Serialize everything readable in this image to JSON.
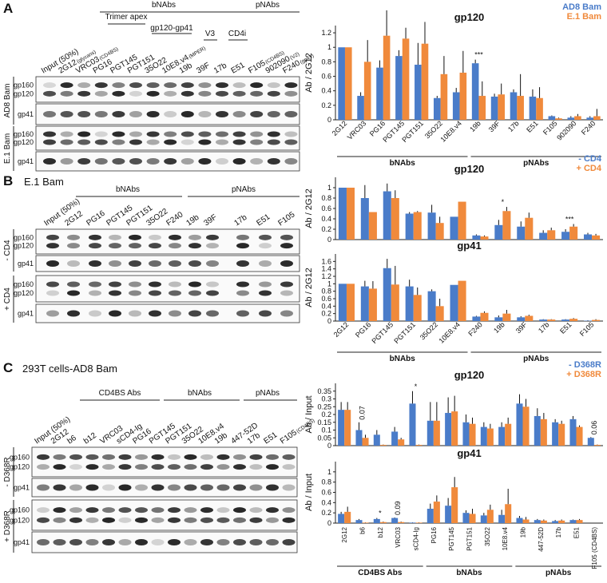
{
  "panels": [
    {
      "letter": "A",
      "lanes": [
        {
          "name": "Input (50%)"
        },
        {
          "name": "2G12",
          "note": "(glycans)"
        },
        {
          "name": "VRC03",
          "note": "(CD4BS)"
        },
        {
          "name": "PG16"
        },
        {
          "name": "PGT145"
        },
        {
          "name": "PGT151"
        },
        {
          "name": "35O22"
        },
        {
          "name": "10E8.v4",
          "note": "(MPER)"
        },
        {
          "name": "19b"
        },
        {
          "name": "39F"
        },
        {
          "name": "17b"
        },
        {
          "name": "E51"
        },
        {
          "name": "F105",
          "note": "(CD4BS)"
        },
        {
          "name": "902090",
          "note": "(V2)"
        },
        {
          "name": "F240",
          "note": "(gp41)"
        }
      ],
      "headers": [
        "bNAbs",
        "pNAbs",
        "Trimer apex",
        "gp120-gp41",
        "V3",
        "CD4i"
      ],
      "blocks": [
        {
          "label": "AD8 Bam",
          "strips": [
            [
              "gp160",
              "gp120"
            ],
            [
              "gp41"
            ]
          ]
        },
        {
          "label": "E.1 Bam",
          "strips": [
            [
              "gp160",
              "gp120"
            ],
            [
              "gp41"
            ]
          ]
        }
      ]
    },
    {
      "letter": "B",
      "title": "E.1 Bam",
      "lanes": [
        {
          "name": "Input (50%)"
        },
        {
          "name": "2G12"
        },
        {
          "name": "PG16"
        },
        {
          "name": "PGT145"
        },
        {
          "name": "PGT151"
        },
        {
          "name": "35O22"
        },
        {
          "name": "F240"
        },
        {
          "name": "19b"
        },
        {
          "name": "39F"
        },
        {
          "name": "17b"
        },
        {
          "name": "E51"
        },
        {
          "name": "F105"
        }
      ],
      "headers": [
        "bNAbs",
        "pNAbs"
      ],
      "blocks": [
        {
          "label": "- CD4",
          "strips": [
            [
              "gp160",
              "gp120"
            ],
            [
              "gp41"
            ]
          ]
        },
        {
          "label": "+ CD4",
          "strips": [
            [
              "gp160",
              "gp120"
            ],
            [
              "gp41"
            ]
          ]
        }
      ]
    },
    {
      "letter": "C",
      "title": "293T cells-AD8 Bam",
      "lanes": [
        {
          "name": "Input (50%)"
        },
        {
          "name": "2G12"
        },
        {
          "name": "b6"
        },
        {
          "name": "b12"
        },
        {
          "name": "VRC03"
        },
        {
          "name": "sCD4-Ig"
        },
        {
          "name": "PG16"
        },
        {
          "name": "PGT145"
        },
        {
          "name": "PGT151"
        },
        {
          "name": "35O22"
        },
        {
          "name": "10E8.v4"
        },
        {
          "name": "19b"
        },
        {
          "name": "447-52D"
        },
        {
          "name": "17b"
        },
        {
          "name": "E51"
        },
        {
          "name": "F105",
          "note": "(CD4BS)"
        }
      ],
      "headers": [
        "CD4BS Abs",
        "bNAbs",
        "pNAbs"
      ],
      "blocks": [
        {
          "label": "- D368R",
          "strips": [
            [
              "gp160",
              "gp120"
            ],
            [
              "gp41"
            ]
          ]
        },
        {
          "label": "+ D368R",
          "strips": [
            [
              "gp160",
              "gp120"
            ],
            [
              "gp41"
            ]
          ]
        }
      ]
    }
  ],
  "chart_data": [
    {
      "type": "bar",
      "title": "gp120",
      "y_label": "Ab / 2G12",
      "legend": "upper right",
      "categories": [
        "2G12",
        "VRC03",
        "PG16",
        "PGT145",
        "PGT151",
        "35O22",
        "10E8.v4",
        "19b",
        "39F",
        "17b",
        "E51",
        "F105",
        "902090",
        "F240"
      ],
      "series": [
        {
          "name": "AD8 Bam",
          "color": "#4a7cc9",
          "values": [
            1.0,
            0.33,
            0.72,
            0.88,
            0.76,
            0.3,
            0.38,
            0.78,
            0.32,
            0.38,
            0.32,
            0.05,
            0.03,
            0.03
          ],
          "errors": [
            0,
            0.05,
            0.1,
            0.08,
            0.3,
            0.03,
            0.06,
            0.05,
            0.04,
            0.04,
            0.1,
            0.01,
            0.02,
            0.02
          ]
        },
        {
          "name": "E.1 Bam",
          "color": "#f08a3c",
          "values": [
            1.0,
            0.8,
            1.16,
            1.12,
            1.05,
            0.63,
            0.65,
            0.33,
            0.35,
            0.33,
            0.3,
            0.02,
            0.05,
            0.05
          ],
          "errors": [
            0,
            0.3,
            0.35,
            0.15,
            0.3,
            0.25,
            0.3,
            0.2,
            0.15,
            0.3,
            0.15,
            0.01,
            0.03,
            0.1
          ]
        }
      ],
      "annotations": [
        null,
        null,
        null,
        null,
        null,
        null,
        null,
        "***",
        null,
        null,
        null,
        null,
        null,
        null
      ],
      "groups": [
        {
          "label": "bNAbs",
          "from": "2G12",
          "to": "10E8.v4"
        },
        {
          "label": "pNAbs",
          "from": "19b",
          "to": "F240"
        }
      ],
      "ylim": [
        0,
        1.3
      ],
      "yticks": [
        0,
        0.2,
        0.4,
        0.6,
        0.8,
        1,
        1.2
      ]
    },
    {
      "type": "bar",
      "title": "gp120",
      "y_label": "Ab / 2G12",
      "legend": "upper right",
      "series": [
        {
          "name": "- CD4",
          "color": "#4a7cc9",
          "values": [
            1.0,
            0.8,
            0.93,
            0.5,
            0.52,
            0.44,
            0.08,
            0.28,
            0.25,
            0.13,
            0.15,
            0.1
          ],
          "errors": [
            0,
            0.25,
            0.15,
            0.03,
            0.15,
            0,
            0.02,
            0.1,
            0.1,
            0.05,
            0.05,
            0.03
          ]
        },
        {
          "name": "+ CD4",
          "color": "#f08a3c",
          "values": [
            1.0,
            0.53,
            0.8,
            0.53,
            0.32,
            0.73,
            0.06,
            0.55,
            0.42,
            0.18,
            0.25,
            0.08
          ],
          "errors": [
            0,
            0,
            0.15,
            0.02,
            0.12,
            0,
            0.02,
            0.08,
            0.1,
            0.05,
            0.05,
            0.03
          ]
        }
      ],
      "annotations": [
        null,
        null,
        null,
        null,
        null,
        null,
        null,
        "*",
        null,
        null,
        "***",
        null
      ],
      "ylim": [
        0,
        1.2
      ],
      "yticks": [
        0,
        0.2,
        0.4,
        0.6,
        0.8,
        1
      ]
    },
    {
      "type": "bar",
      "title": "gp41",
      "y_label": "Ab / 2G12",
      "categories": [
        "2G12",
        "PG16",
        "PGT145",
        "PGT151",
        "35O22",
        "10E8.v4",
        "F240",
        "19b",
        "39F",
        "17b",
        "E51",
        "F105"
      ],
      "series": [
        {
          "color": "#4a7cc9",
          "values": [
            1.0,
            0.93,
            1.42,
            0.93,
            0.8,
            0.97,
            0.12,
            0.1,
            0.1,
            0.04,
            0.04,
            0.01
          ],
          "errors": [
            0,
            0.15,
            0.25,
            0.18,
            0.05,
            0,
            0.02,
            0.05,
            0.03,
            0.01,
            0.01,
            0.01
          ]
        },
        {
          "color": "#f08a3c",
          "values": [
            1.0,
            0.87,
            0.98,
            0.7,
            0.4,
            1.08,
            0.22,
            0.2,
            0.14,
            0.04,
            0.06,
            0.03
          ],
          "errors": [
            0,
            0.2,
            0.5,
            0.2,
            0.2,
            0,
            0.04,
            0.1,
            0.03,
            0.01,
            0.02,
            0.02
          ]
        }
      ],
      "groups": [
        {
          "label": "bNAbs",
          "from": "2G12",
          "to": "10E8.v4"
        },
        {
          "label": "pNAbs",
          "from": "F240",
          "to": "F105"
        }
      ],
      "ylim": [
        0,
        1.8
      ],
      "yticks": [
        0,
        0.2,
        0.4,
        0.6,
        0.8,
        1,
        1.2,
        1.4,
        1.6
      ]
    },
    {
      "type": "bar",
      "title": "gp120",
      "y_label": "Ab / Input",
      "legend": "upper right",
      "series": [
        {
          "name": "- D368R",
          "color": "#4a7cc9",
          "values": [
            0.23,
            0.1,
            0.07,
            0.09,
            0.27,
            0.16,
            0.21,
            0.15,
            0.12,
            0.12,
            0.27,
            0.19,
            0.15,
            0.17,
            0.05
          ],
          "errors": [
            0.05,
            0.05,
            0.03,
            0.03,
            0.08,
            0.12,
            0.1,
            0.05,
            0.03,
            0.03,
            0.06,
            0.05,
            0.02,
            0.02,
            0.005
          ]
        },
        {
          "name": "+ D368R",
          "color": "#f08a3c",
          "values": [
            0.23,
            0.05,
            0.005,
            0.04,
            0.005,
            0.16,
            0.22,
            0.14,
            0.11,
            0.14,
            0.25,
            0.17,
            0.14,
            0.12,
            0.005
          ],
          "errors": [
            0.05,
            0.02,
            0.002,
            0.01,
            0.002,
            0.12,
            0.1,
            0.04,
            0.03,
            0.04,
            0.05,
            0.04,
            0.02,
            0.01,
            0.002
          ]
        }
      ],
      "annotations": [
        null,
        "0.07",
        null,
        null,
        "*",
        null,
        null,
        null,
        null,
        null,
        null,
        null,
        null,
        null,
        "0.06"
      ],
      "ylim": [
        0,
        0.4
      ],
      "yticks": [
        0,
        0.05,
        0.1,
        0.15,
        0.2,
        0.25,
        0.3,
        0.35
      ]
    },
    {
      "type": "bar",
      "title": "gp41",
      "y_label": "Ab / Input",
      "categories": [
        "2G12",
        "b6",
        "b12",
        "VRC03",
        "sCD4-Ig",
        "PG16",
        "PGT145",
        "PGT151",
        "35O22",
        "10E8.v4",
        "19b",
        "447-52D",
        "17b",
        "E51",
        "F105 (CD4BS)"
      ],
      "series": [
        {
          "color": "#4a7cc9",
          "values": [
            0.18,
            0.06,
            0.08,
            0.1,
            0.01,
            0.28,
            0.34,
            0.2,
            0.15,
            0.16,
            0.1,
            0.06,
            0.04,
            0.06,
            0.0
          ],
          "errors": [
            0.04,
            0.02,
            0.02,
            0.01,
            0.005,
            0.1,
            0.15,
            0.05,
            0.05,
            0.1,
            0.04,
            0.02,
            0.02,
            0.01,
            0.002
          ]
        },
        {
          "color": "#f08a3c",
          "values": [
            0.22,
            0.01,
            0.02,
            0.02,
            0.01,
            0.42,
            0.7,
            0.18,
            0.26,
            0.37,
            0.07,
            0.05,
            0.05,
            0.06,
            0.0
          ],
          "errors": [
            0.1,
            0.005,
            0.01,
            0.01,
            0.005,
            0.12,
            0.2,
            0.1,
            0.1,
            0.3,
            0.05,
            0.02,
            0.02,
            0.02,
            0.002
          ]
        }
      ],
      "annotations": [
        null,
        null,
        "*",
        "0.09",
        null,
        null,
        null,
        null,
        null,
        null,
        null,
        null,
        null,
        null,
        null
      ],
      "groups": [
        {
          "label": "CD4BS Abs",
          "from": "2G12",
          "to": "sCD4-Ig"
        },
        {
          "label": "bNAbs",
          "from": "PG16",
          "to": "10E8.v4"
        },
        {
          "label": "pNAbs",
          "from": "19b",
          "to": "F105 (CD4BS)"
        }
      ],
      "ylim": [
        0,
        1.2
      ],
      "yticks": [
        0,
        0.2,
        0.4,
        0.6,
        0.8,
        1
      ]
    }
  ]
}
